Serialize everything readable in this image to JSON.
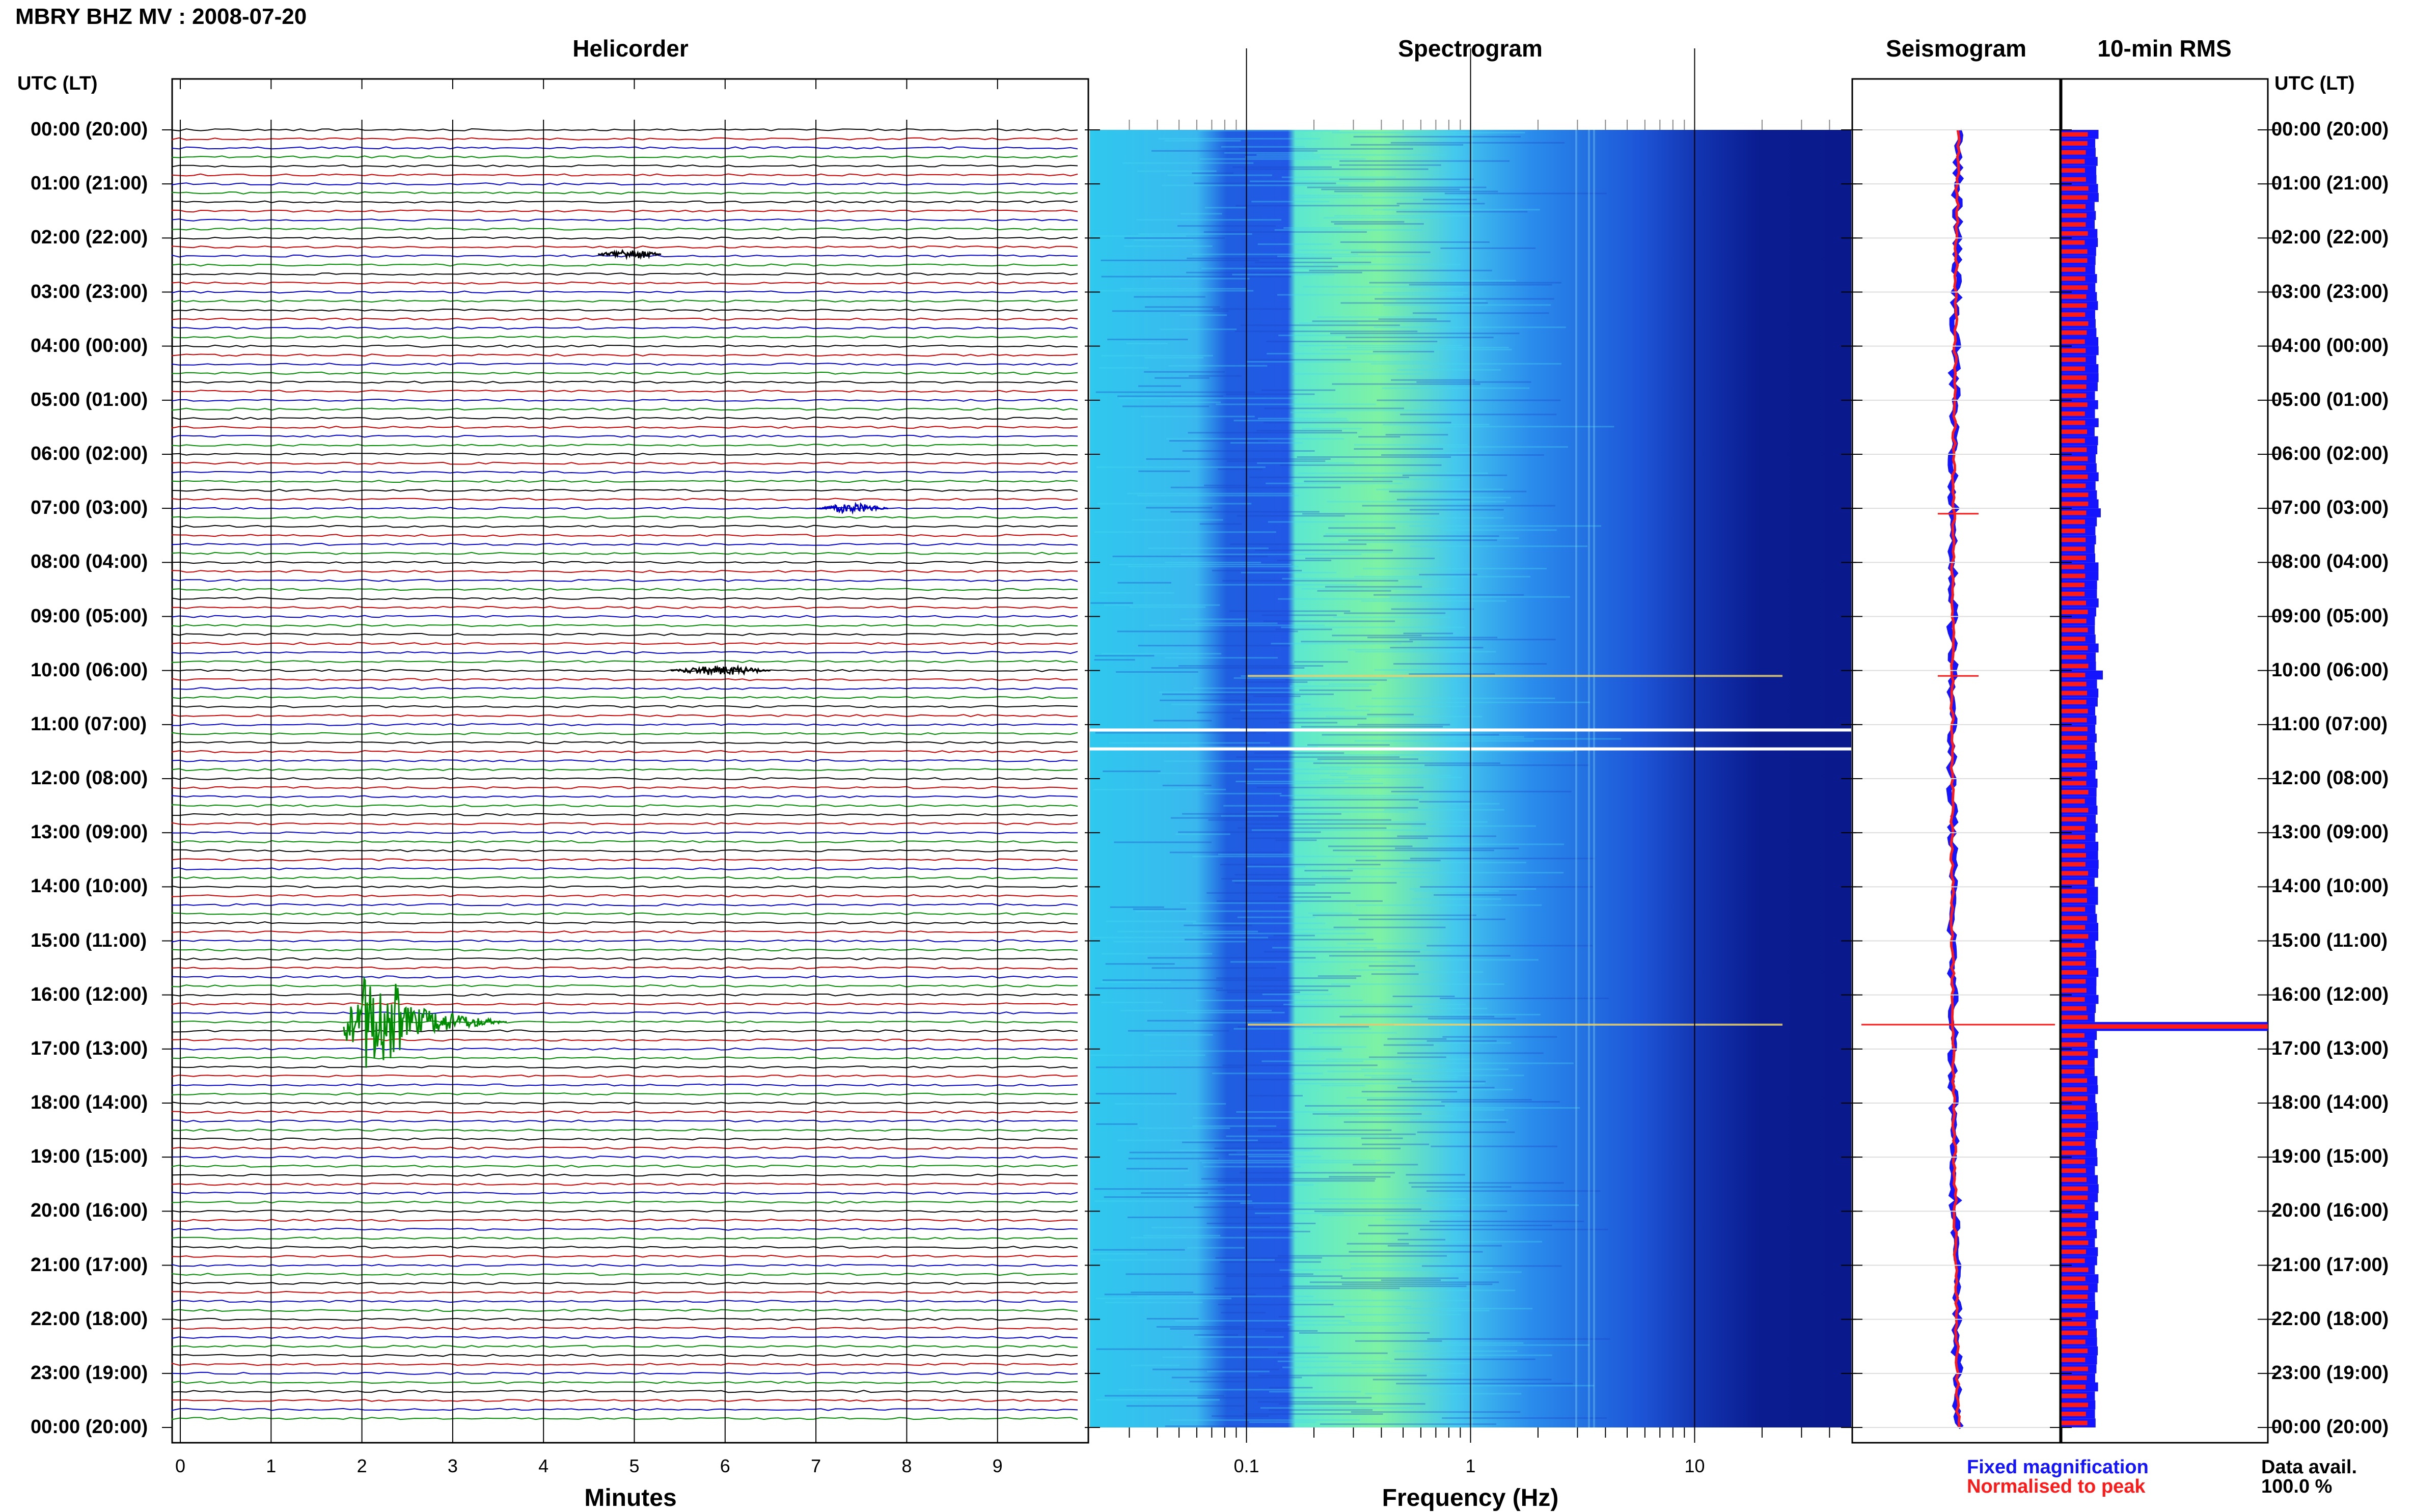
{
  "header": {
    "station_title": "MBRY BHZ MV : 2008-07-20",
    "utc_lt_label": "UTC (LT)"
  },
  "panels": {
    "helicorder": "Helicorder",
    "spectrogram": "Spectrogram",
    "seismogram": "Seismogram",
    "rms": "10-min RMS"
  },
  "legend": {
    "fixed": "Fixed magnification",
    "normalised": "Normalised to peak",
    "data_avail_label": "Data avail.",
    "data_avail_value": "100.0 %",
    "fixed_color": "#1414ff",
    "normalised_color": "#ff1a1a"
  },
  "colors": {
    "trace_cycle": [
      "#000000",
      "#c80000",
      "#0000c8",
      "#008c00"
    ],
    "spectrogram_low": "#38d8f0",
    "spectrogram_mid": "#70f098",
    "spectrogram_high": "#0a1e9a"
  },
  "chart_data": [
    {
      "type": "line",
      "title": "Helicorder",
      "xlabel": "Minutes",
      "ylabel": "UTC (LT)",
      "xlim": [
        0,
        10
      ],
      "x_ticks": [
        "0",
        "1",
        "2",
        "3",
        "4",
        "5",
        "6",
        "7",
        "8",
        "9"
      ],
      "y_tick_labels": [
        "00:00 (20:00)",
        "01:00 (21:00)",
        "02:00 (22:00)",
        "03:00 (23:00)",
        "04:00 (00:00)",
        "05:00 (01:00)",
        "06:00 (02:00)",
        "07:00 (03:00)",
        "08:00 (04:00)",
        "09:00 (05:00)",
        "10:00 (06:00)",
        "11:00 (07:00)",
        "12:00 (08:00)",
        "13:00 (09:00)",
        "14:00 (10:00)",
        "15:00 (11:00)",
        "16:00 (12:00)",
        "17:00 (13:00)",
        "18:00 (14:00)",
        "19:00 (15:00)",
        "20:00 (16:00)",
        "21:00 (17:00)",
        "22:00 (18:00)",
        "23:00 (19:00)",
        "00:00 (20:00)"
      ],
      "rows_per_hour": 6,
      "events": [
        {
          "hour": 2.3,
          "minute_start": 4.6,
          "minute_end": 5.3,
          "size": "small"
        },
        {
          "hour": 7.0,
          "minute_start": 7.0,
          "minute_end": 7.8,
          "size": "small"
        },
        {
          "hour": 10.0,
          "minute_start": 5.4,
          "minute_end": 6.5,
          "size": "small"
        },
        {
          "hour": 16.5,
          "minute_start": 1.8,
          "minute_end": 3.6,
          "size": "large"
        }
      ],
      "grid": true
    },
    {
      "type": "heatmap",
      "title": "Spectrogram",
      "xlabel": "Frequency (Hz)",
      "x_scale": "log",
      "xlim": [
        0.02,
        50
      ],
      "x_ticks": [
        "0.1",
        "1",
        "10"
      ],
      "gaps_hours": [
        11.1,
        11.45
      ],
      "event_lines_hours": [
        10.1,
        16.55
      ]
    },
    {
      "type": "line",
      "title": "Seismogram",
      "event_hours": [
        7.1,
        10.1,
        16.55
      ]
    },
    {
      "type": "bar",
      "title": "10-min RMS",
      "series": [
        {
          "name": "Fixed magnification",
          "level": 0.17
        },
        {
          "name": "Normalised to peak",
          "level": 0.12
        }
      ],
      "spikes": [
        {
          "hour": 7.0,
          "fixed": 0.19
        },
        {
          "hour": 10.0,
          "fixed": 0.2
        },
        {
          "hour": 16.5,
          "fixed": 1.0,
          "normalised": 1.0
        }
      ]
    }
  ]
}
